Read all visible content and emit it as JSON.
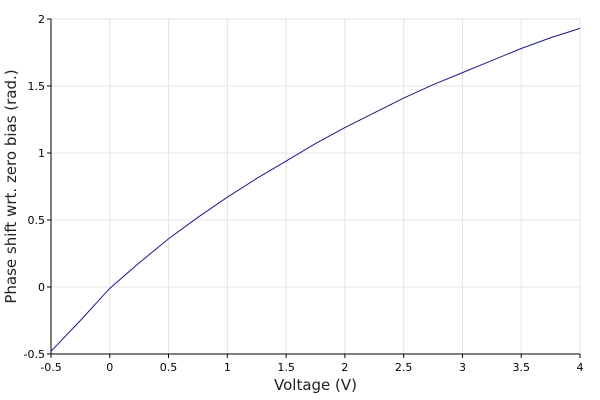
{
  "chart_data": {
    "type": "line",
    "title": "",
    "xlabel": "Voltage (V)",
    "ylabel": "Phase shift wrt. zero bias (rad.)",
    "xlim": [
      -0.5,
      4
    ],
    "ylim": [
      -0.5,
      2
    ],
    "xticks": [
      -0.5,
      0,
      0.5,
      1,
      1.5,
      2,
      2.5,
      3,
      3.5,
      4
    ],
    "xtick_labels": [
      "-0.5",
      "0",
      "0.5",
      "1",
      "1.5",
      "2",
      "2.5",
      "3",
      "3.5",
      "4"
    ],
    "yticks": [
      -0.5,
      0,
      0.5,
      1,
      1.5,
      2
    ],
    "ytick_labels": [
      "-0.5",
      "0",
      "0.5",
      "1",
      "1.5",
      "2"
    ],
    "grid": true,
    "series": [
      {
        "color": "#1a1a8c",
        "x": [
          -0.5,
          -0.25,
          0,
          0.25,
          0.5,
          0.75,
          1,
          1.25,
          1.5,
          1.75,
          2,
          2.25,
          2.5,
          2.75,
          3,
          3.25,
          3.5,
          3.75,
          4
        ],
        "y": [
          -0.48,
          -0.25,
          -0.01,
          0.18,
          0.36,
          0.52,
          0.67,
          0.81,
          0.94,
          1.07,
          1.19,
          1.3,
          1.41,
          1.51,
          1.6,
          1.69,
          1.78,
          1.86,
          1.93
        ]
      }
    ]
  }
}
